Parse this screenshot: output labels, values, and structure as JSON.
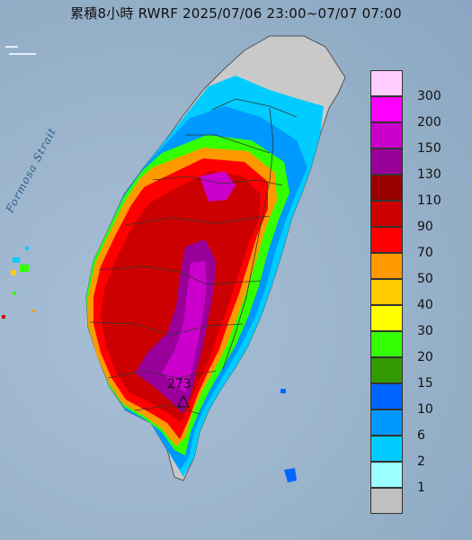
{
  "title": "累積8小時 RWRF 2025/07/06 23:00~07/07 07:00",
  "strait_label": "Formosa Strait",
  "peak_label": "273",
  "legend": [
    {
      "label": "300",
      "color": "#ffccff"
    },
    {
      "label": "200",
      "color": "#ff00ff"
    },
    {
      "label": "150",
      "color": "#cc00cc"
    },
    {
      "label": "130",
      "color": "#990099"
    },
    {
      "label": "110",
      "color": "#990000"
    },
    {
      "label": "90",
      "color": "#cc0000"
    },
    {
      "label": "70",
      "color": "#ff0000"
    },
    {
      "label": "50",
      "color": "#ff9900"
    },
    {
      "label": "40",
      "color": "#ffcc00"
    },
    {
      "label": "30",
      "color": "#ffff00"
    },
    {
      "label": "20",
      "color": "#33ff00"
    },
    {
      "label": "15",
      "color": "#339900"
    },
    {
      "label": "10",
      "color": "#0066ff"
    },
    {
      "label": "6",
      "color": "#0099ff"
    },
    {
      "label": "2",
      "color": "#00ccff"
    },
    {
      "label": "1",
      "color": "#99ffff"
    },
    {
      "label": "",
      "color": "#c0c0c0"
    }
  ]
}
